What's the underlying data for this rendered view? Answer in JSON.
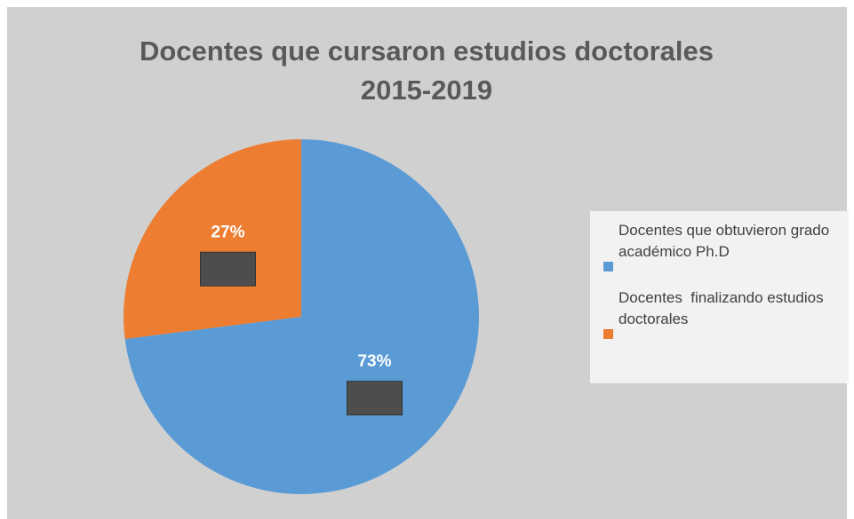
{
  "chart_data": {
    "type": "pie",
    "title": [
      "Docentes que cursaron estudios doctorales",
      "2015-2019"
    ],
    "categories": [
      "Docentes que obtuvieron grado académico Ph.D",
      "Docentes  finalizando estudios doctorales"
    ],
    "values": [
      73,
      27
    ],
    "value_labels": [
      "73%",
      "27%"
    ],
    "colors": [
      "#5b9bd5",
      "#ed7d31"
    ],
    "legend": "right"
  }
}
